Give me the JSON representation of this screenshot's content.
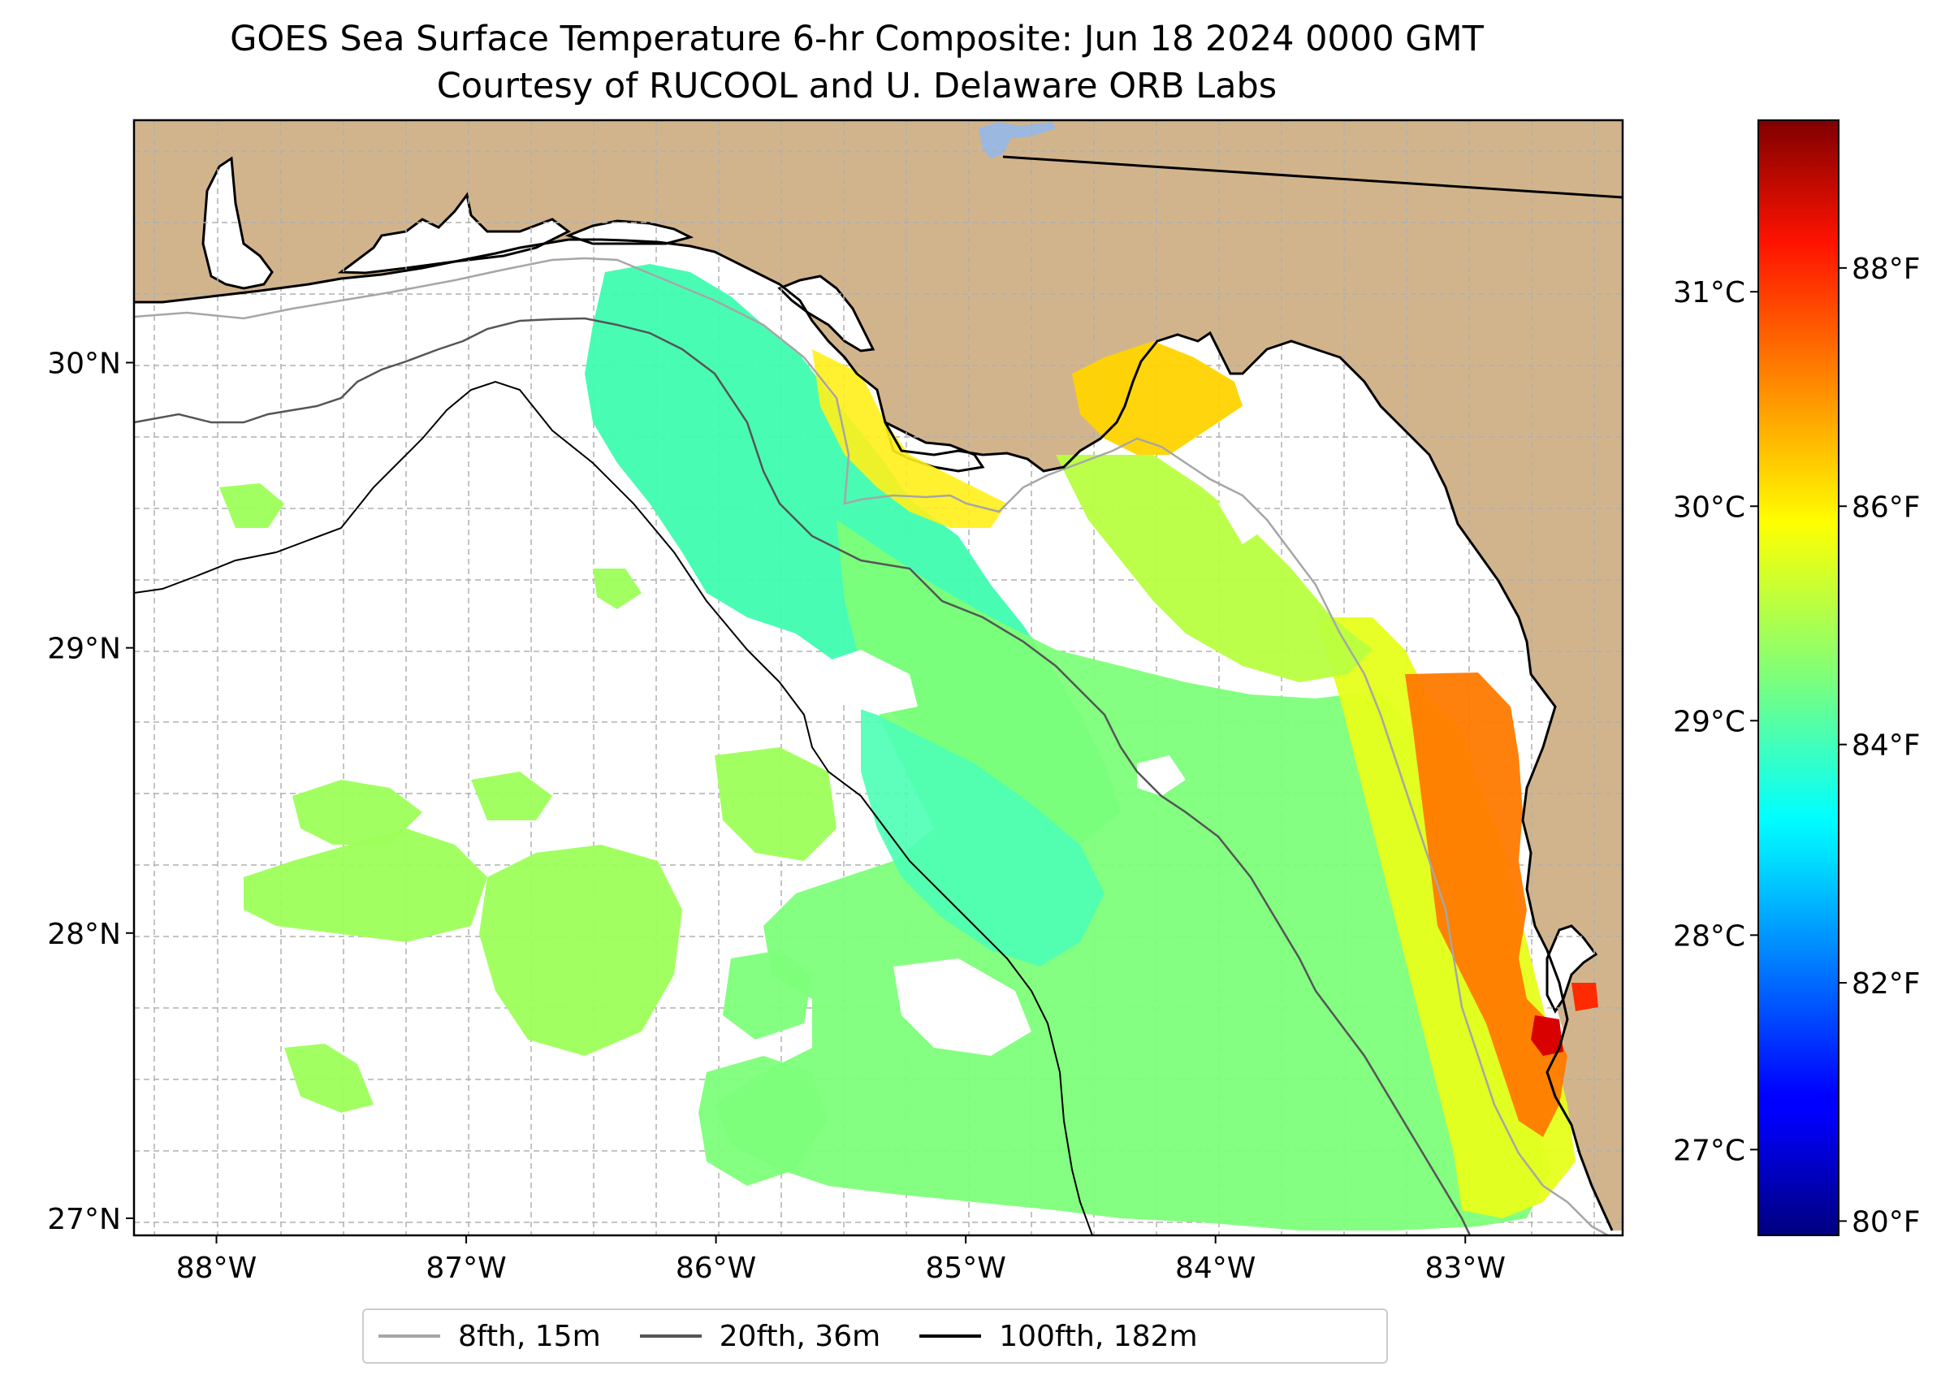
{
  "title": {
    "line1": "GOES Sea Surface Temperature 6-hr Composite: Jun 18 2024 0000 GMT",
    "line2": "Courtesy of RUCOOL and U. Delaware ORB Labs"
  },
  "map": {
    "lon_range": [
      -88.33,
      -82.37
    ],
    "lat_range": [
      26.94,
      30.85
    ],
    "lat_ticks": [
      {
        "value": 27,
        "label": "27°N"
      },
      {
        "value": 28,
        "label": "28°N"
      },
      {
        "value": 29,
        "label": "29°N"
      },
      {
        "value": 30,
        "label": "30°N"
      }
    ],
    "lon_ticks": [
      {
        "value": -88,
        "label": "88°W"
      },
      {
        "value": -87,
        "label": "87°W"
      },
      {
        "value": -86,
        "label": "86°W"
      },
      {
        "value": -85,
        "label": "85°W"
      },
      {
        "value": -84,
        "label": "84°W"
      },
      {
        "value": -83,
        "label": "83°W"
      }
    ],
    "land_color": "#d2b48c",
    "lake_color": "#9bb8e0",
    "gridlines": "dashed gray"
  },
  "legend": {
    "items": [
      {
        "label": "8fth, 15m",
        "color": "#a6a6a6"
      },
      {
        "label": "20fth, 36m",
        "color": "#555555"
      },
      {
        "label": "100fth, 182m",
        "color": "#000000"
      }
    ]
  },
  "colorbar": {
    "colormap": "jet",
    "celsius_range": [
      26.6,
      31.8
    ],
    "celsius_ticks": [
      {
        "value": 27,
        "label": "27°C"
      },
      {
        "value": 28,
        "label": "28°C"
      },
      {
        "value": 29,
        "label": "29°C"
      },
      {
        "value": 30,
        "label": "30°C"
      },
      {
        "value": 31,
        "label": "31°C"
      }
    ],
    "fahrenheit_ticks": [
      {
        "value": 80,
        "label": "80°F"
      },
      {
        "value": 82,
        "label": "82°F"
      },
      {
        "value": 84,
        "label": "84°F"
      },
      {
        "value": 86,
        "label": "86°F"
      },
      {
        "value": 88,
        "label": "88°F"
      }
    ]
  }
}
